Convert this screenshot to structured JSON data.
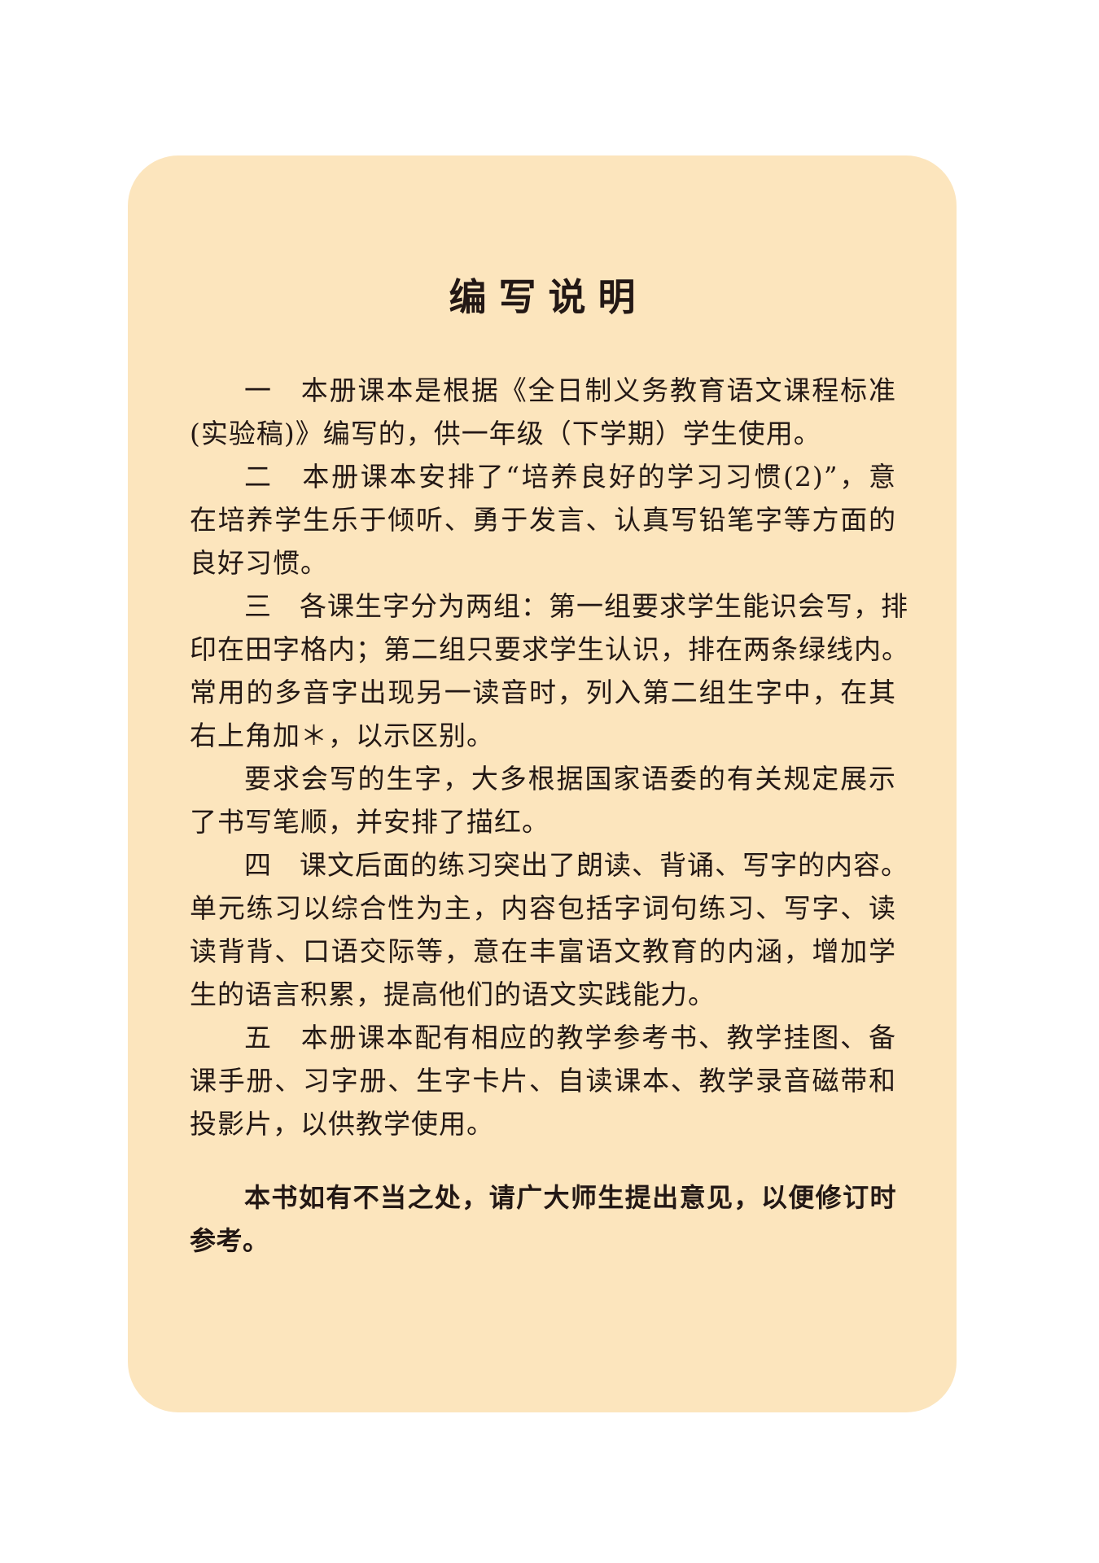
{
  "colors": {
    "card": "#FCE5BD",
    "text": "#231815"
  },
  "title": "编写说明",
  "paragraphs": [
    {
      "lines": [
        "一　本册课本是根据《全日制义务教育语文课程标准",
        "(实验稿)》编写的，供一年级（下学期）学生使用。"
      ]
    },
    {
      "lines": [
        "二　本册课本安排了“培养良好的学习习惯(2)”，意",
        "在培养学生乐于倾听、勇于发言、认真写铅笔字等方面的",
        "良好习惯。"
      ]
    },
    {
      "lines": [
        "三　各课生字分为两组：第一组要求学生能识会写，排",
        "印在田字格内；第二组只要求学生认识，排在两条绿线内。",
        "常用的多音字出现另一读音时，列入第二组生字中，在其",
        "右上角加＊，以示区别。"
      ]
    },
    {
      "lines": [
        "要求会写的生字，大多根据国家语委的有关规定展示",
        "了书写笔顺，并安排了描红。"
      ]
    },
    {
      "lines": [
        "四　课文后面的练习突出了朗读、背诵、写字的内容。",
        "单元练习以综合性为主，内容包括字词句练习、写字、读",
        "读背背、口语交际等，意在丰富语文教育的内涵，增加学",
        "生的语言积累，提高他们的语文实践能力。"
      ]
    },
    {
      "lines": [
        "五　本册课本配有相应的教学参考书、教学挂图、备",
        "课手册、习字册、生字卡片、自读课本、教学录音磁带和",
        "投影片，以供教学使用。"
      ]
    }
  ],
  "note": {
    "lines": [
      "本书如有不当之处，请广大师生提出意见，以便修订时",
      "参考。"
    ]
  }
}
